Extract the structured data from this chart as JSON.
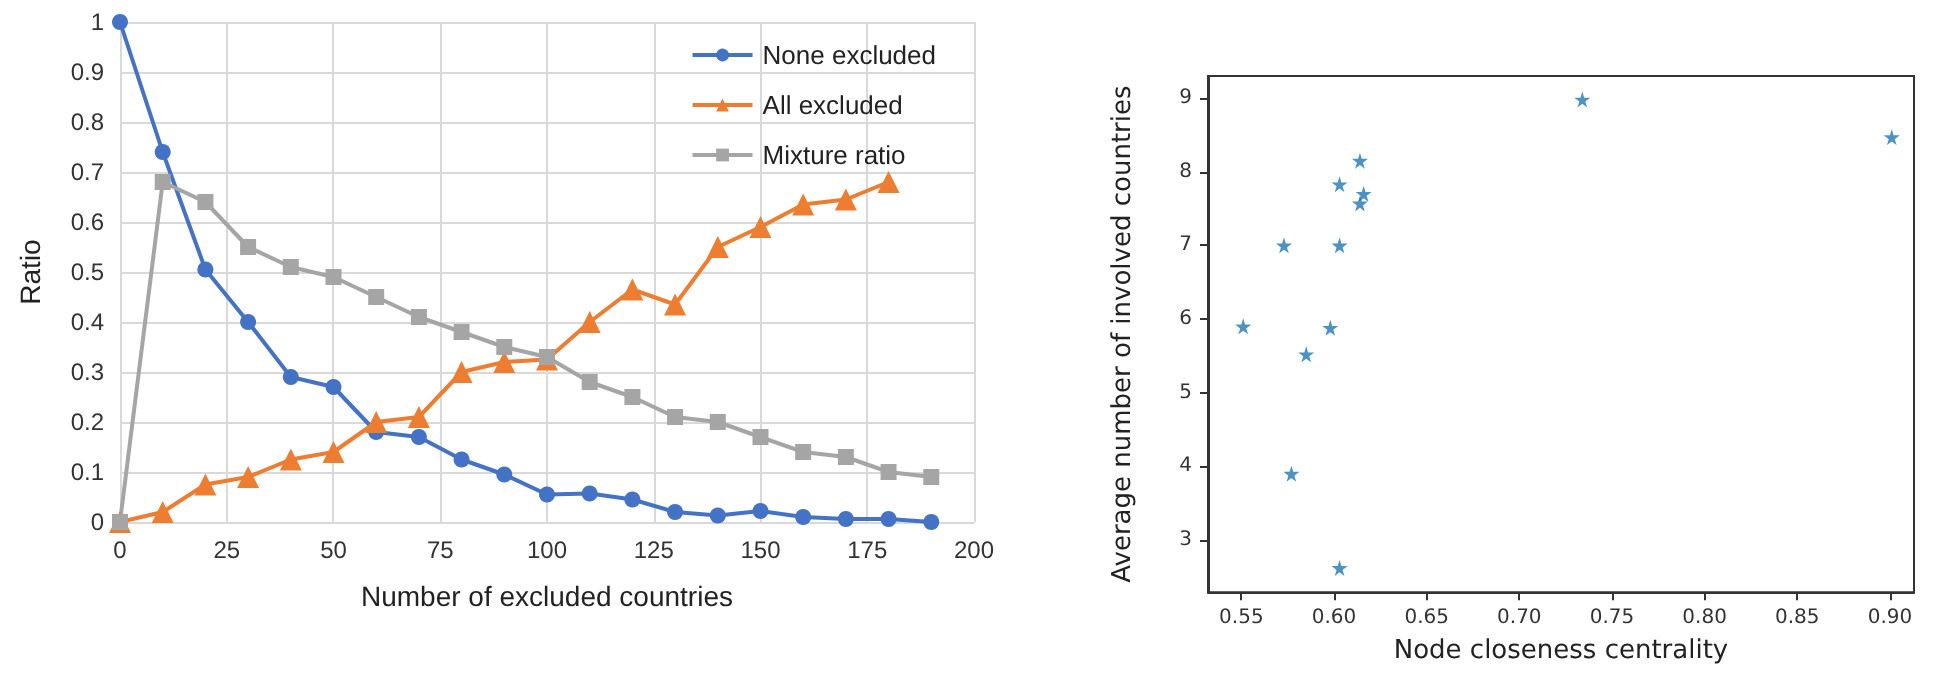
{
  "chart_data": [
    {
      "type": "line",
      "xlabel": "Number of excluded countries",
      "ylabel": "Ratio",
      "x": [
        0,
        10,
        20,
        30,
        40,
        50,
        60,
        70,
        80,
        90,
        100,
        110,
        120,
        130,
        140,
        150,
        160,
        170,
        180,
        190
      ],
      "series": [
        {
          "name": "None excluded",
          "color": "#4472c4",
          "marker": "circle",
          "values": [
            1,
            0.74,
            0.505,
            0.4,
            0.29,
            0.27,
            0.18,
            0.17,
            0.125,
            0.095,
            0.055,
            0.057,
            0.045,
            0.02,
            0.013,
            0.022,
            0.01,
            0.006,
            0.006,
            0
          ]
        },
        {
          "name": "All excluded",
          "color": "#ed7d31",
          "marker": "triangle",
          "values": [
            0,
            0.02,
            0.075,
            0.09,
            0.125,
            0.14,
            0.2,
            0.21,
            0.3,
            0.32,
            0.325,
            0.4,
            0.465,
            0.435,
            0.55,
            0.59,
            0.635,
            0.645,
            0.68,
            null
          ]
        },
        {
          "name": "Mixture ratio",
          "color": "#a5a5a5",
          "marker": "square",
          "values": [
            0,
            0.68,
            0.64,
            0.55,
            0.51,
            0.49,
            0.45,
            0.41,
            0.38,
            0.35,
            0.33,
            0.28,
            0.25,
            0.21,
            0.2,
            0.17,
            0.14,
            0.13,
            0.1,
            0.09
          ]
        }
      ],
      "xlim": [
        0,
        200
      ],
      "xticks": [
        0,
        25,
        50,
        75,
        100,
        125,
        150,
        175,
        200
      ],
      "ylim": [
        0,
        1
      ],
      "yticks": [
        0,
        0.1,
        0.2,
        0.3,
        0.4,
        0.5,
        0.6,
        0.7,
        0.8,
        0.9,
        1
      ],
      "grid": true,
      "legend": "top right",
      "line_style": "solid"
    },
    {
      "type": "scatter",
      "xlabel": "Node closeness centrality",
      "ylabel": "Average number of involved countries",
      "x": [
        0.551,
        0.573,
        0.577,
        0.585,
        0.598,
        0.603,
        0.603,
        0.603,
        0.614,
        0.614,
        0.616,
        0.734,
        0.901
      ],
      "series": [
        {
          "color": "#1f77b4",
          "values": [
            5.9,
            7.0,
            3.9,
            5.52,
            5.88,
            7.83,
            7.0,
            2.62,
            8.15,
            7.57,
            7.7,
            8.98,
            8.47
          ]
        }
      ],
      "xlim": [
        0.532,
        0.913
      ],
      "xticks": [
        {
          "value": 0.55,
          "label": "0.55"
        },
        {
          "value": 0.6,
          "label": "0.60"
        },
        {
          "value": 0.65,
          "label": "0.65"
        },
        {
          "value": 0.7,
          "label": "0.70"
        },
        {
          "value": 0.75,
          "label": "0.75"
        },
        {
          "value": 0.8,
          "label": "0.80"
        },
        {
          "value": 0.85,
          "label": "0.85"
        },
        {
          "value": 0.9,
          "label": "0.90"
        }
      ],
      "ylim": [
        2.29,
        9.3
      ],
      "yticks": [
        3,
        4,
        5,
        6,
        7,
        8,
        9
      ],
      "grid": false,
      "legend": false,
      "marker": "star"
    }
  ]
}
